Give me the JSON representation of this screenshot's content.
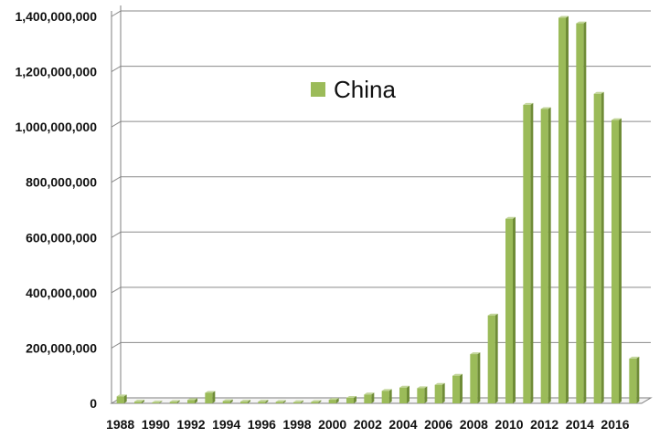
{
  "chart_data": {
    "type": "bar",
    "title": "",
    "xlabel": "",
    "ylabel": "",
    "ylim": [
      0,
      1400000000
    ],
    "y_ticks": [
      0,
      200000000,
      400000000,
      600000000,
      800000000,
      1000000000,
      1200000000,
      1400000000
    ],
    "y_tick_labels": [
      "0",
      "200,000,000",
      "400,000,000",
      "600,000,000",
      "800,000,000",
      "1,000,000,000",
      "1,200,000,000",
      "1,400,000,000"
    ],
    "categories": [
      "1988",
      "1989",
      "1990",
      "1991",
      "1992",
      "1993",
      "1994",
      "1995",
      "1996",
      "1997",
      "1998",
      "1999",
      "2000",
      "2001",
      "2002",
      "2003",
      "2004",
      "2005",
      "2006",
      "2007",
      "2008",
      "2009",
      "2010",
      "2011",
      "2012",
      "2013",
      "2014",
      "2015",
      "2016",
      "2017"
    ],
    "x_tick_labels": [
      "1988",
      "1990",
      "1992",
      "1994",
      "1996",
      "1998",
      "2000",
      "2002",
      "2004",
      "2006",
      "2008",
      "2010",
      "2012",
      "2014",
      "2016"
    ],
    "series": [
      {
        "name": "China",
        "values": [
          25000000,
          6000000,
          3000000,
          5000000,
          12000000,
          38000000,
          8000000,
          6000000,
          6000000,
          5000000,
          4000000,
          5000000,
          13000000,
          20000000,
          32000000,
          45000000,
          57000000,
          55000000,
          67000000,
          100000000,
          178000000,
          318000000,
          668000000,
          1080000000,
          1065000000,
          1395000000,
          1375000000,
          1120000000,
          1025000000,
          162000000
        ]
      }
    ],
    "grid": true,
    "legend_position": "top-center",
    "colors": {
      "bar_front": "#9bbb59",
      "bar_side": "#6f8c37",
      "bar_top": "#c3d69b",
      "grid": "#8a8a8a",
      "axis": "#7f7f7f",
      "legend": "#9bbb59"
    }
  }
}
